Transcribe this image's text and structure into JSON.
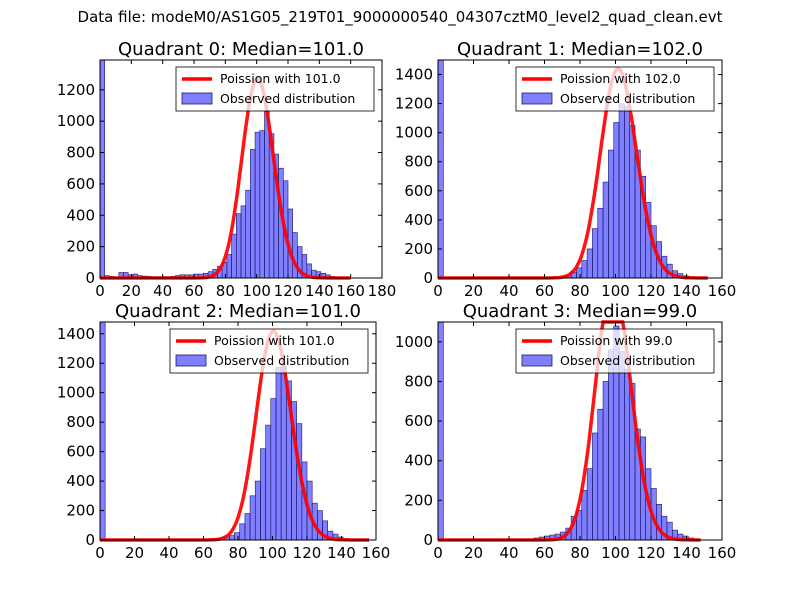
{
  "figure": {
    "suptitle": "Data file: modeM0/AS1G05_219T01_9000000540_04307cztM0_level2_quad_clean.evt"
  },
  "chart_data": [
    {
      "type": "bar",
      "title": "Quadrant 0: Median=101.0",
      "xlim": [
        0,
        180
      ],
      "ylim": [
        0,
        1390
      ],
      "xticks": [
        0,
        20,
        40,
        60,
        80,
        100,
        120,
        140,
        160,
        180
      ],
      "yticks": [
        0,
        200,
        400,
        600,
        800,
        1000,
        1200
      ],
      "bin_width": 3,
      "hist": [
        [
          0,
          1390
        ],
        [
          3,
          15
        ],
        [
          6,
          10
        ],
        [
          12,
          35
        ],
        [
          15,
          35
        ],
        [
          18,
          20
        ],
        [
          21,
          25
        ],
        [
          24,
          15
        ],
        [
          27,
          12
        ],
        [
          30,
          10
        ],
        [
          33,
          8
        ],
        [
          36,
          8
        ],
        [
          39,
          8
        ],
        [
          42,
          8
        ],
        [
          45,
          10
        ],
        [
          48,
          15
        ],
        [
          51,
          20
        ],
        [
          54,
          20
        ],
        [
          57,
          20
        ],
        [
          60,
          25
        ],
        [
          63,
          25
        ],
        [
          66,
          30
        ],
        [
          69,
          40
        ],
        [
          72,
          55
        ],
        [
          75,
          75
        ],
        [
          78,
          100
        ],
        [
          81,
          150
        ],
        [
          84,
          280
        ],
        [
          87,
          410
        ],
        [
          90,
          460
        ],
        [
          93,
          560
        ],
        [
          96,
          820
        ],
        [
          99,
          930
        ],
        [
          102,
          940
        ],
        [
          105,
          1060
        ],
        [
          108,
          920
        ],
        [
          111,
          790
        ],
        [
          114,
          700
        ],
        [
          117,
          620
        ],
        [
          120,
          440
        ],
        [
          123,
          290
        ],
        [
          126,
          200
        ],
        [
          129,
          150
        ],
        [
          132,
          90
        ],
        [
          135,
          50
        ],
        [
          138,
          40
        ],
        [
          141,
          30
        ],
        [
          144,
          20
        ],
        [
          147,
          10
        ],
        [
          150,
          5
        ]
      ],
      "poisson_mean": 101.0,
      "curve_max_x": 160,
      "legend": {
        "entries": [
          "Poission with 101.0",
          "Observed distribution"
        ],
        "location": "upper right"
      }
    },
    {
      "type": "bar",
      "title": "Quadrant 1: Median=102.0",
      "xlim": [
        0,
        160
      ],
      "ylim": [
        0,
        1500
      ],
      "xticks": [
        0,
        20,
        40,
        60,
        80,
        100,
        120,
        140,
        160
      ],
      "yticks": [
        0,
        200,
        400,
        600,
        800,
        1000,
        1200,
        1400
      ],
      "bin_width": 3,
      "hist": [
        [
          0,
          1500
        ],
        [
          60,
          3
        ],
        [
          63,
          5
        ],
        [
          66,
          8
        ],
        [
          69,
          12
        ],
        [
          72,
          20
        ],
        [
          75,
          40
        ],
        [
          78,
          70
        ],
        [
          81,
          120
        ],
        [
          84,
          200
        ],
        [
          87,
          340
        ],
        [
          90,
          480
        ],
        [
          93,
          660
        ],
        [
          96,
          880
        ],
        [
          99,
          1070
        ],
        [
          102,
          1200
        ],
        [
          105,
          1180
        ],
        [
          108,
          1050
        ],
        [
          111,
          880
        ],
        [
          114,
          700
        ],
        [
          117,
          520
        ],
        [
          120,
          360
        ],
        [
          123,
          250
        ],
        [
          126,
          150
        ],
        [
          129,
          95
        ],
        [
          132,
          50
        ],
        [
          135,
          30
        ],
        [
          138,
          15
        ],
        [
          141,
          8
        ],
        [
          144,
          5
        ]
      ],
      "poisson_mean": 102.0,
      "curve_max_x": 152,
      "legend": {
        "entries": [
          "Poission with 102.0",
          "Observed distribution"
        ],
        "location": "upper right"
      }
    },
    {
      "type": "bar",
      "title": "Quadrant 2: Median=101.0",
      "xlim": [
        0,
        160
      ],
      "ylim": [
        0,
        1480
      ],
      "xticks": [
        0,
        20,
        40,
        60,
        80,
        100,
        120,
        140,
        160
      ],
      "yticks": [
        0,
        200,
        400,
        600,
        800,
        1000,
        1200,
        1400
      ],
      "bin_width": 3,
      "hist": [
        [
          0,
          1480
        ],
        [
          60,
          5
        ],
        [
          63,
          8
        ],
        [
          66,
          10
        ],
        [
          69,
          15
        ],
        [
          72,
          20
        ],
        [
          75,
          30
        ],
        [
          78,
          50
        ],
        [
          81,
          110
        ],
        [
          84,
          180
        ],
        [
          87,
          300
        ],
        [
          90,
          400
        ],
        [
          93,
          620
        ],
        [
          96,
          780
        ],
        [
          99,
          960
        ],
        [
          102,
          1170
        ],
        [
          105,
          1180
        ],
        [
          108,
          1080
        ],
        [
          111,
          940
        ],
        [
          114,
          790
        ],
        [
          117,
          530
        ],
        [
          120,
          400
        ],
        [
          123,
          250
        ],
        [
          126,
          200
        ],
        [
          129,
          130
        ],
        [
          132,
          60
        ],
        [
          135,
          40
        ],
        [
          138,
          20
        ],
        [
          141,
          10
        ]
      ],
      "poisson_mean": 101.0,
      "curve_max_x": 156,
      "legend": {
        "entries": [
          "Poission with 101.0",
          "Observed distribution"
        ],
        "location": "upper right"
      }
    },
    {
      "type": "bar",
      "title": "Quadrant 3: Median=99.0",
      "xlim": [
        0,
        160
      ],
      "ylim": [
        0,
        1100
      ],
      "xticks": [
        0,
        20,
        40,
        60,
        80,
        100,
        120,
        140,
        160
      ],
      "yticks": [
        0,
        200,
        400,
        600,
        800,
        1000
      ],
      "bin_width": 3,
      "hist": [
        [
          0,
          1100
        ],
        [
          54,
          10
        ],
        [
          57,
          15
        ],
        [
          60,
          20
        ],
        [
          63,
          25
        ],
        [
          66,
          30
        ],
        [
          69,
          40
        ],
        [
          72,
          60
        ],
        [
          75,
          120
        ],
        [
          78,
          150
        ],
        [
          81,
          250
        ],
        [
          84,
          360
        ],
        [
          87,
          540
        ],
        [
          90,
          660
        ],
        [
          93,
          800
        ],
        [
          96,
          960
        ],
        [
          99,
          1080
        ],
        [
          102,
          950
        ],
        [
          105,
          860
        ],
        [
          108,
          790
        ],
        [
          111,
          560
        ],
        [
          114,
          520
        ],
        [
          117,
          360
        ],
        [
          120,
          260
        ],
        [
          123,
          180
        ],
        [
          126,
          120
        ],
        [
          129,
          90
        ],
        [
          132,
          50
        ],
        [
          135,
          30
        ],
        [
          138,
          20
        ],
        [
          141,
          10
        ],
        [
          144,
          5
        ]
      ],
      "poisson_mean": 99.0,
      "curve_max_x": 148,
      "legend": {
        "entries": [
          "Poission with 99.0",
          "Observed distribution"
        ],
        "location": "upper right"
      }
    }
  ]
}
